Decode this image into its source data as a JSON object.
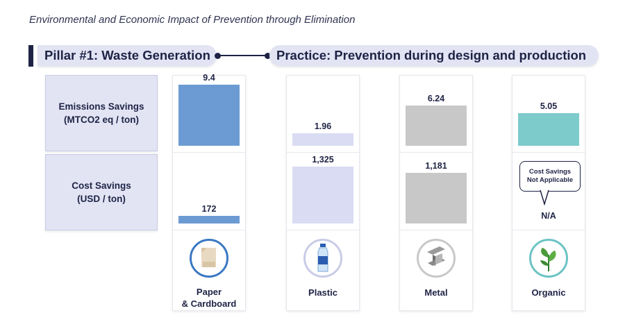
{
  "page_title": "Environmental and Economic Impact of Prevention through Elimination",
  "header": {
    "pillar": "Pillar #1: Waste Generation",
    "practice": "Practice: Prevention during design and production"
  },
  "rows": {
    "emissions": {
      "line1": "Emissions Savings",
      "line2": "(MTCO2 eq / ton)"
    },
    "cost": {
      "line1": "Cost Savings",
      "line2": "(USD / ton)"
    }
  },
  "na_bubble": {
    "line1": "Cost Savings",
    "line2": "Not Applicable"
  },
  "colors": {
    "paper": "#6b9bd2",
    "plastic": "#d9dcf2",
    "metal": "#c8c8c8",
    "organic": "#7ecbcc",
    "navy": "#1e2345"
  },
  "icons": {
    "paper": "paper-icon",
    "plastic": "bottle-icon",
    "metal": "steel-beam-icon",
    "organic": "leaf-plant-icon"
  },
  "chart_data": [
    {
      "type": "bar",
      "title": "Emissions Savings (MTCO2 eq / ton)",
      "categories": [
        "Paper & Cardboard",
        "Plastic",
        "Metal",
        "Organic"
      ],
      "values": [
        9.4,
        1.96,
        6.24,
        5.05
      ],
      "value_labels": [
        "9.4",
        "1.96",
        "6.24",
        "5.05"
      ]
    },
    {
      "type": "bar",
      "title": "Cost Savings (USD / ton)",
      "categories": [
        "Paper & Cardboard",
        "Plastic",
        "Metal",
        "Organic"
      ],
      "values": [
        172,
        1325,
        1181,
        null
      ],
      "value_labels": [
        "172",
        "1,325",
        "1,181",
        "N/A"
      ]
    }
  ],
  "materials": [
    {
      "line1": "Paper",
      "line2": "& Cardboard"
    },
    {
      "line1": "Plastic",
      "line2": ""
    },
    {
      "line1": "Metal",
      "line2": ""
    },
    {
      "line1": "Organic",
      "line2": ""
    }
  ]
}
